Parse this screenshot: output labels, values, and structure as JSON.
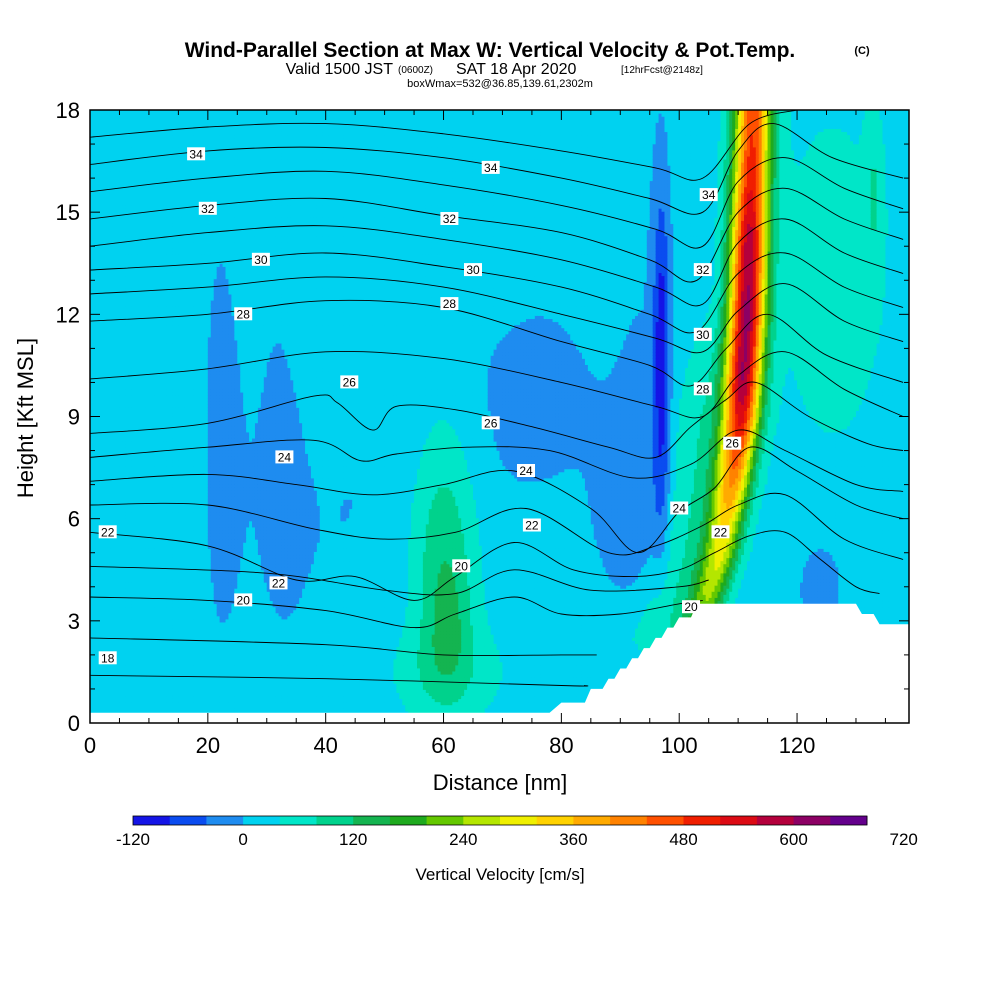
{
  "title": {
    "main": "Wind-Parallel Section at Max W: Vertical Velocity & Pot.Temp.",
    "copyright": "(C)",
    "valid_prefix": "Valid 1500 JST",
    "valid_utc": "(0600Z)",
    "valid_date": "SAT 18 Apr 2020",
    "forecast": "[12hrFcst@2148z]",
    "box_info": "boxWmax=532@36.85,139.61,2302m"
  },
  "chart_data": {
    "type": "heatmap",
    "xlabel": "Distance [nm]",
    "ylabel": "Height [Kft MSL]",
    "xlim": [
      0,
      139
    ],
    "ylim": [
      0,
      18
    ],
    "x_ticks": [
      0,
      20,
      40,
      60,
      80,
      100,
      120
    ],
    "y_ticks": [
      0,
      3,
      6,
      9,
      12,
      15,
      18
    ],
    "colorbar": {
      "label": "Vertical Velocity [cm/s]",
      "min": -120,
      "step": 40,
      "ticks": [
        -120,
        0,
        120,
        240,
        360,
        480,
        600,
        720
      ],
      "colors": [
        "#1414e6",
        "#0a4cf0",
        "#1e8cf0",
        "#00d2f0",
        "#00e6c8",
        "#00d28c",
        "#14b450",
        "#1eaa1e",
        "#64c800",
        "#b4e600",
        "#f0f000",
        "#ffd200",
        "#ffaa00",
        "#ff8200",
        "#ff5000",
        "#f01e00",
        "#dc0a14",
        "#b4003c",
        "#8c0064",
        "#64008c"
      ]
    },
    "background_w": 20,
    "w_features": [
      {
        "x": 6,
        "y": 9,
        "sx": 3,
        "sy": 9,
        "w": -20
      },
      {
        "x": 22,
        "y": 9,
        "sx": 4,
        "sy": 9,
        "w": -22
      },
      {
        "x": 32,
        "y": 10,
        "sx": 3.5,
        "sy": 7,
        "w": -15
      },
      {
        "x": 42,
        "y": 5,
        "sx": 10,
        "sy": 4,
        "w": -18
      },
      {
        "x": 70,
        "y": 9,
        "sx": 16,
        "sy": 2.5,
        "w": -22
      },
      {
        "x": 78,
        "y": 12,
        "sx": 8,
        "sy": 4,
        "w": -10
      },
      {
        "x": 92,
        "y": 6,
        "sx": 4,
        "sy": 1.6,
        "w": -45
      },
      {
        "x": 97,
        "y": 10.5,
        "sx": 1,
        "sy": 3.5,
        "w": -120
      },
      {
        "x": 94,
        "y": 12,
        "sx": 4,
        "sy": 6,
        "w": -15
      },
      {
        "x": 60,
        "y": 5,
        "sx": 4,
        "sy": 3,
        "w": 95
      },
      {
        "x": 61,
        "y": 3,
        "sx": 2.5,
        "sy": 1.2,
        "w": 40
      },
      {
        "x": 60,
        "y": 1.5,
        "sx": 8,
        "sy": 1,
        "w": 40
      },
      {
        "x": 124,
        "y": 4,
        "sx": 2.5,
        "sy": 0.9,
        "w": -60
      },
      {
        "x": 126,
        "y": 13,
        "sx": 9,
        "sy": 5,
        "w": 30
      },
      {
        "x": 133,
        "y": 15.5,
        "sx": 1,
        "sy": 1.5,
        "w": 50
      }
    ],
    "updraft": {
      "center_path": [
        [
          103,
          2.5
        ],
        [
          107,
          5
        ],
        [
          109,
          7
        ],
        [
          110.5,
          9
        ],
        [
          111.5,
          12
        ],
        [
          112,
          15
        ],
        [
          112.5,
          18
        ]
      ],
      "peak_profile": [
        [
          2.5,
          140
        ],
        [
          4,
          220
        ],
        [
          6,
          300
        ],
        [
          8,
          430
        ],
        [
          10,
          560
        ],
        [
          12,
          580
        ],
        [
          14,
          560
        ],
        [
          16,
          480
        ],
        [
          18,
          440
        ]
      ],
      "sigma_nm": 2.2,
      "flank": {
        "offset_nm": -6,
        "sigma_nm": 4,
        "w": 60
      }
    },
    "theta_lines": [
      {
        "label": 18,
        "path": [
          [
            0,
            1.4
          ],
          [
            40,
            1.3
          ],
          [
            80,
            1.1
          ],
          [
            84,
            1.1
          ]
        ]
      },
      {
        "label": 20,
        "path": [
          [
            0,
            3.7
          ],
          [
            20,
            3.6
          ],
          [
            40,
            3.3
          ],
          [
            55,
            2.8
          ],
          [
            62,
            3.2
          ],
          [
            72,
            3.7
          ],
          [
            80,
            3.2
          ],
          [
            90,
            3.2
          ],
          [
            100,
            3.5
          ],
          [
            104,
            3.6
          ]
        ]
      },
      {
        "label": 22,
        "path": [
          [
            0,
            5.6
          ],
          [
            20,
            5.2
          ],
          [
            35,
            4.2
          ],
          [
            45,
            4.3
          ],
          [
            55,
            3.6
          ],
          [
            62,
            4.3
          ],
          [
            72,
            5.3
          ],
          [
            82,
            4.5
          ],
          [
            92,
            4.3
          ],
          [
            100,
            4.5
          ],
          [
            106,
            5.0
          ],
          [
            112,
            5.5
          ],
          [
            118,
            5.6
          ],
          [
            124,
            4.8
          ],
          [
            130,
            4.0
          ],
          [
            134,
            3.8
          ]
        ]
      },
      {
        "label": 24,
        "path": [
          [
            0,
            7.1
          ],
          [
            20,
            7.3
          ],
          [
            35,
            7.0
          ],
          [
            48,
            6.7
          ],
          [
            60,
            7.0
          ],
          [
            72,
            7.4
          ],
          [
            85,
            6.3
          ],
          [
            93,
            5.0
          ],
          [
            100,
            6.2
          ],
          [
            106,
            6.9
          ],
          [
            112,
            8.1
          ],
          [
            120,
            7.4
          ],
          [
            130,
            6.4
          ],
          [
            138,
            6.0
          ]
        ]
      },
      {
        "label": 26,
        "path": [
          [
            0,
            8.5
          ],
          [
            20,
            8.8
          ],
          [
            38,
            9.6
          ],
          [
            42,
            9.4
          ],
          [
            48,
            8.6
          ],
          [
            52,
            9.3
          ],
          [
            62,
            9.2
          ],
          [
            75,
            8.7
          ],
          [
            88,
            8.1
          ],
          [
            96,
            7.8
          ],
          [
            102,
            8.7
          ],
          [
            108,
            9.5
          ],
          [
            113,
            10.0
          ],
          [
            122,
            9.0
          ],
          [
            132,
            8.2
          ],
          [
            138,
            8.0
          ]
        ]
      },
      {
        "label": 28,
        "path": [
          [
            0,
            11.8
          ],
          [
            20,
            12.0
          ],
          [
            40,
            12.4
          ],
          [
            60,
            12.2
          ],
          [
            80,
            11.2
          ],
          [
            95,
            10.5
          ],
          [
            102,
            9.9
          ],
          [
            108,
            11.0
          ],
          [
            115,
            12.0
          ],
          [
            125,
            10.8
          ],
          [
            138,
            10.0
          ]
        ]
      },
      {
        "label": 30,
        "path": [
          [
            0,
            13.3
          ],
          [
            20,
            13.5
          ],
          [
            40,
            13.8
          ],
          [
            60,
            13.4
          ],
          [
            80,
            12.8
          ],
          [
            95,
            12.0
          ],
          [
            103,
            11.5
          ],
          [
            110,
            13.2
          ],
          [
            118,
            13.8
          ],
          [
            128,
            12.8
          ],
          [
            138,
            12.2
          ]
        ]
      },
      {
        "label": 32,
        "path": [
          [
            0,
            14.8
          ],
          [
            20,
            15.2
          ],
          [
            40,
            15.4
          ],
          [
            60,
            14.9
          ],
          [
            80,
            14.4
          ],
          [
            95,
            13.6
          ],
          [
            103,
            13.0
          ],
          [
            110,
            15.0
          ],
          [
            118,
            15.7
          ],
          [
            128,
            14.8
          ],
          [
            138,
            14.2
          ]
        ]
      },
      {
        "label": 34,
        "path": [
          [
            0,
            16.4
          ],
          [
            20,
            16.8
          ],
          [
            40,
            16.9
          ],
          [
            60,
            16.6
          ],
          [
            80,
            16.0
          ],
          [
            95,
            15.4
          ],
          [
            104,
            15.0
          ],
          [
            110,
            16.8
          ],
          [
            116,
            17.6
          ],
          [
            126,
            16.6
          ],
          [
            138,
            16.0
          ]
        ]
      }
    ],
    "extra_theta_lines": [
      [
        [
          0,
          2.5
        ],
        [
          40,
          2.3
        ],
        [
          60,
          2.0
        ],
        [
          80,
          2.0
        ],
        [
          86,
          2.0
        ]
      ],
      [
        [
          0,
          4.6
        ],
        [
          30,
          4.4
        ],
        [
          50,
          3.9
        ],
        [
          62,
          3.8
        ],
        [
          72,
          4.5
        ],
        [
          85,
          3.9
        ],
        [
          100,
          4.0
        ],
        [
          105,
          4.2
        ]
      ],
      [
        [
          0,
          6.4
        ],
        [
          20,
          6.4
        ],
        [
          38,
          5.7
        ],
        [
          50,
          5.4
        ],
        [
          62,
          5.6
        ],
        [
          74,
          6.3
        ],
        [
          88,
          5.0
        ],
        [
          96,
          5.2
        ],
        [
          104,
          5.8
        ],
        [
          110,
          6.4
        ],
        [
          118,
          6.7
        ],
        [
          128,
          5.4
        ],
        [
          138,
          4.8
        ]
      ],
      [
        [
          0,
          7.8
        ],
        [
          20,
          8.1
        ],
        [
          38,
          8.3
        ],
        [
          46,
          7.7
        ],
        [
          52,
          7.9
        ],
        [
          64,
          8.1
        ],
        [
          78,
          8.0
        ],
        [
          92,
          7.2
        ],
        [
          102,
          7.6
        ],
        [
          110,
          8.6
        ],
        [
          118,
          8.0
        ],
        [
          130,
          7.0
        ],
        [
          138,
          6.8
        ]
      ],
      [
        [
          0,
          10.1
        ],
        [
          20,
          10.4
        ],
        [
          40,
          10.9
        ],
        [
          60,
          10.7
        ],
        [
          80,
          10.0
        ],
        [
          96,
          9.3
        ],
        [
          104,
          9.0
        ],
        [
          110,
          10.2
        ],
        [
          118,
          10.9
        ],
        [
          128,
          9.8
        ],
        [
          138,
          9.0
        ]
      ],
      [
        [
          0,
          12.6
        ],
        [
          20,
          12.8
        ],
        [
          40,
          13.1
        ],
        [
          60,
          12.8
        ],
        [
          80,
          12.0
        ],
        [
          96,
          11.3
        ],
        [
          104,
          10.9
        ],
        [
          110,
          12.1
        ],
        [
          118,
          12.9
        ],
        [
          128,
          11.8
        ],
        [
          138,
          11.2
        ]
      ],
      [
        [
          0,
          14.0
        ],
        [
          20,
          14.4
        ],
        [
          40,
          14.6
        ],
        [
          60,
          14.2
        ],
        [
          80,
          13.6
        ],
        [
          96,
          12.8
        ],
        [
          104,
          12.3
        ],
        [
          110,
          14.1
        ],
        [
          118,
          14.8
        ],
        [
          128,
          13.8
        ],
        [
          138,
          13.2
        ]
      ],
      [
        [
          0,
          15.6
        ],
        [
          20,
          16.0
        ],
        [
          40,
          16.2
        ],
        [
          60,
          15.8
        ],
        [
          80,
          15.2
        ],
        [
          96,
          14.5
        ],
        [
          104,
          14.0
        ],
        [
          110,
          15.9
        ],
        [
          118,
          16.6
        ],
        [
          128,
          15.7
        ],
        [
          138,
          15.1
        ]
      ],
      [
        [
          0,
          17.2
        ],
        [
          20,
          17.5
        ],
        [
          40,
          17.6
        ],
        [
          60,
          17.3
        ],
        [
          80,
          16.8
        ],
        [
          96,
          16.3
        ],
        [
          104,
          16.0
        ],
        [
          112,
          17.6
        ],
        [
          120,
          18.0
        ]
      ]
    ],
    "contour_labels": [
      {
        "text": "18",
        "x": 3,
        "y": 1.9
      },
      {
        "text": "20",
        "x": 26,
        "y": 3.6
      },
      {
        "text": "20",
        "x": 63,
        "y": 4.6
      },
      {
        "text": "20",
        "x": 102,
        "y": 3.4
      },
      {
        "text": "22",
        "x": 3,
        "y": 5.6
      },
      {
        "text": "22",
        "x": 32,
        "y": 4.1
      },
      {
        "text": "22",
        "x": 75,
        "y": 5.8
      },
      {
        "text": "22",
        "x": 107,
        "y": 5.6
      },
      {
        "text": "24",
        "x": 33,
        "y": 7.8
      },
      {
        "text": "24",
        "x": 74,
        "y": 7.4
      },
      {
        "text": "24",
        "x": 100,
        "y": 6.3
      },
      {
        "text": "26",
        "x": 44,
        "y": 10.0
      },
      {
        "text": "26",
        "x": 68,
        "y": 8.8
      },
      {
        "text": "26",
        "x": 109,
        "y": 8.2
      },
      {
        "text": "28",
        "x": 26,
        "y": 12.0
      },
      {
        "text": "28",
        "x": 61,
        "y": 12.3
      },
      {
        "text": "28",
        "x": 104,
        "y": 9.8
      },
      {
        "text": "30",
        "x": 29,
        "y": 13.6
      },
      {
        "text": "30",
        "x": 65,
        "y": 13.3
      },
      {
        "text": "30",
        "x": 104,
        "y": 11.4
      },
      {
        "text": "32",
        "x": 20,
        "y": 15.1
      },
      {
        "text": "32",
        "x": 61,
        "y": 14.8
      },
      {
        "text": "32",
        "x": 104,
        "y": 13.3
      },
      {
        "text": "34",
        "x": 18,
        "y": 16.7
      },
      {
        "text": "34",
        "x": 68,
        "y": 16.3
      },
      {
        "text": "34",
        "x": 105,
        "y": 15.5
      }
    ],
    "terrain_kft": [
      [
        0,
        0.3
      ],
      [
        78,
        0.3
      ],
      [
        80,
        0.6
      ],
      [
        84,
        0.6
      ],
      [
        85,
        1.0
      ],
      [
        87,
        1.0
      ],
      [
        88,
        1.3
      ],
      [
        89,
        1.3
      ],
      [
        90,
        1.6
      ],
      [
        91,
        1.6
      ],
      [
        92,
        1.9
      ],
      [
        93,
        1.9
      ],
      [
        94,
        2.2
      ],
      [
        95,
        2.2
      ],
      [
        96,
        2.5
      ],
      [
        97,
        2.5
      ],
      [
        98,
        2.8
      ],
      [
        99,
        2.8
      ],
      [
        100,
        3.1
      ],
      [
        102,
        3.1
      ],
      [
        103,
        3.5
      ],
      [
        130,
        3.5
      ],
      [
        131,
        3.2
      ],
      [
        133,
        3.2
      ],
      [
        134,
        2.9
      ],
      [
        139,
        2.9
      ]
    ],
    "grid": false
  }
}
